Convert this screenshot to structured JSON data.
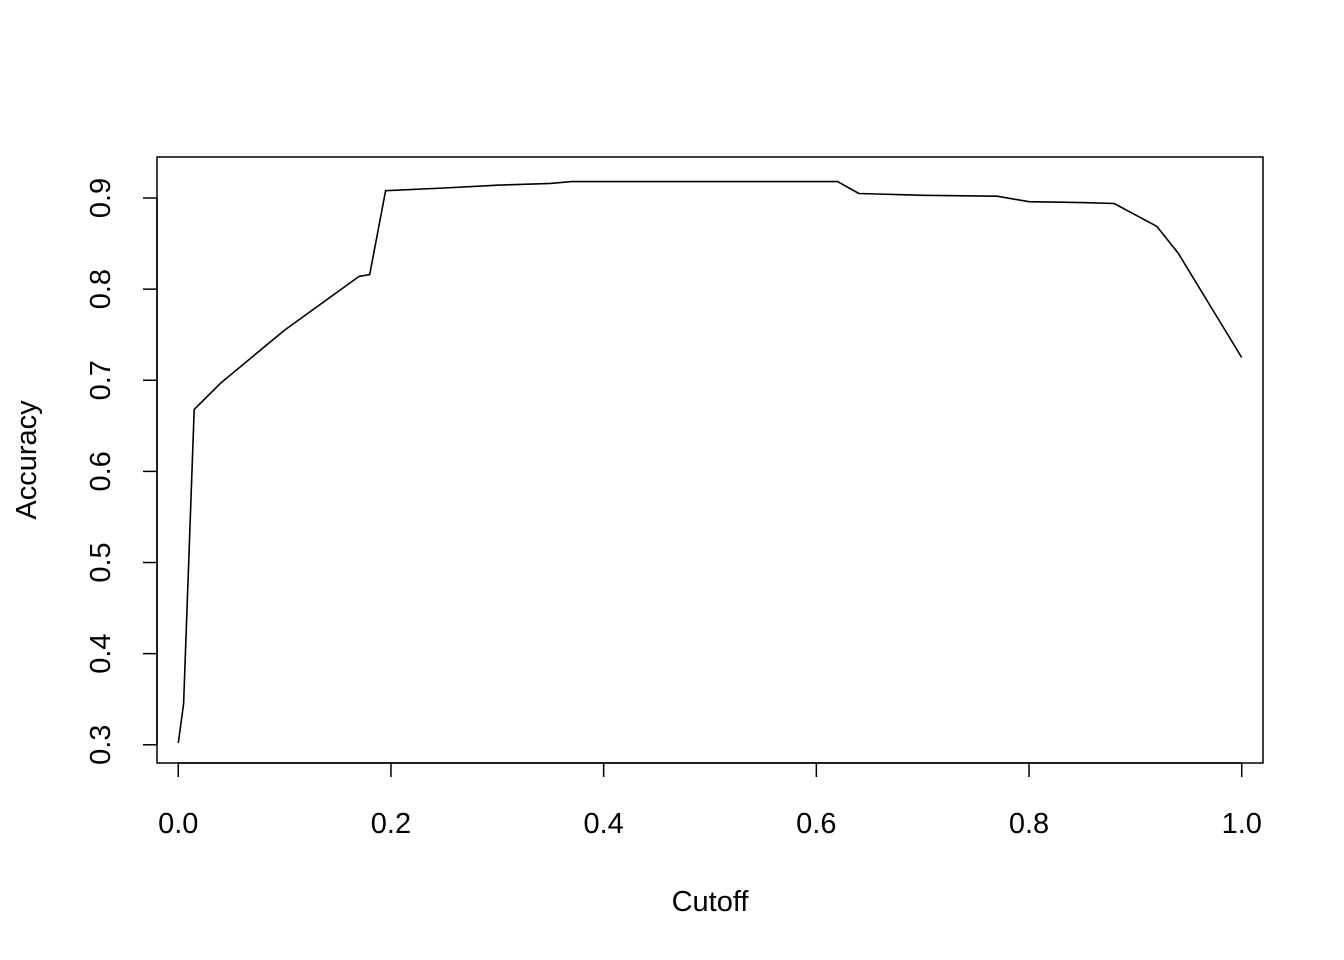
{
  "chart_data": {
    "type": "line",
    "title": "",
    "xlabel": "Cutoff",
    "ylabel": "Accuracy",
    "xlim": [
      -0.02,
      1.02
    ],
    "ylim": [
      0.28,
      0.945
    ],
    "grid": false,
    "legend": "none",
    "line_color": "#000000",
    "x_ticks": [
      0.0,
      0.2,
      0.4,
      0.6,
      0.8,
      1.0
    ],
    "x_tick_labels": [
      "0.0",
      "0.2",
      "0.4",
      "0.6",
      "0.8",
      "1.0"
    ],
    "y_ticks": [
      0.3,
      0.4,
      0.5,
      0.6,
      0.7,
      0.8,
      0.9
    ],
    "y_tick_labels": [
      "0.3",
      "0.4",
      "0.5",
      "0.6",
      "0.7",
      "0.8",
      "0.9"
    ],
    "series": [
      {
        "x": [
          0.0,
          0.005,
          0.015,
          0.04,
          0.1,
          0.17,
          0.18,
          0.195,
          0.25,
          0.3,
          0.35,
          0.37,
          0.45,
          0.5,
          0.55,
          0.62,
          0.64,
          0.7,
          0.77,
          0.8,
          0.85,
          0.88,
          0.92,
          0.94,
          1.0
        ],
        "y": [
          0.302,
          0.345,
          0.668,
          0.697,
          0.755,
          0.814,
          0.816,
          0.908,
          0.911,
          0.914,
          0.916,
          0.918,
          0.918,
          0.918,
          0.918,
          0.918,
          0.905,
          0.903,
          0.902,
          0.896,
          0.895,
          0.894,
          0.869,
          0.84,
          0.725
        ]
      }
    ]
  }
}
